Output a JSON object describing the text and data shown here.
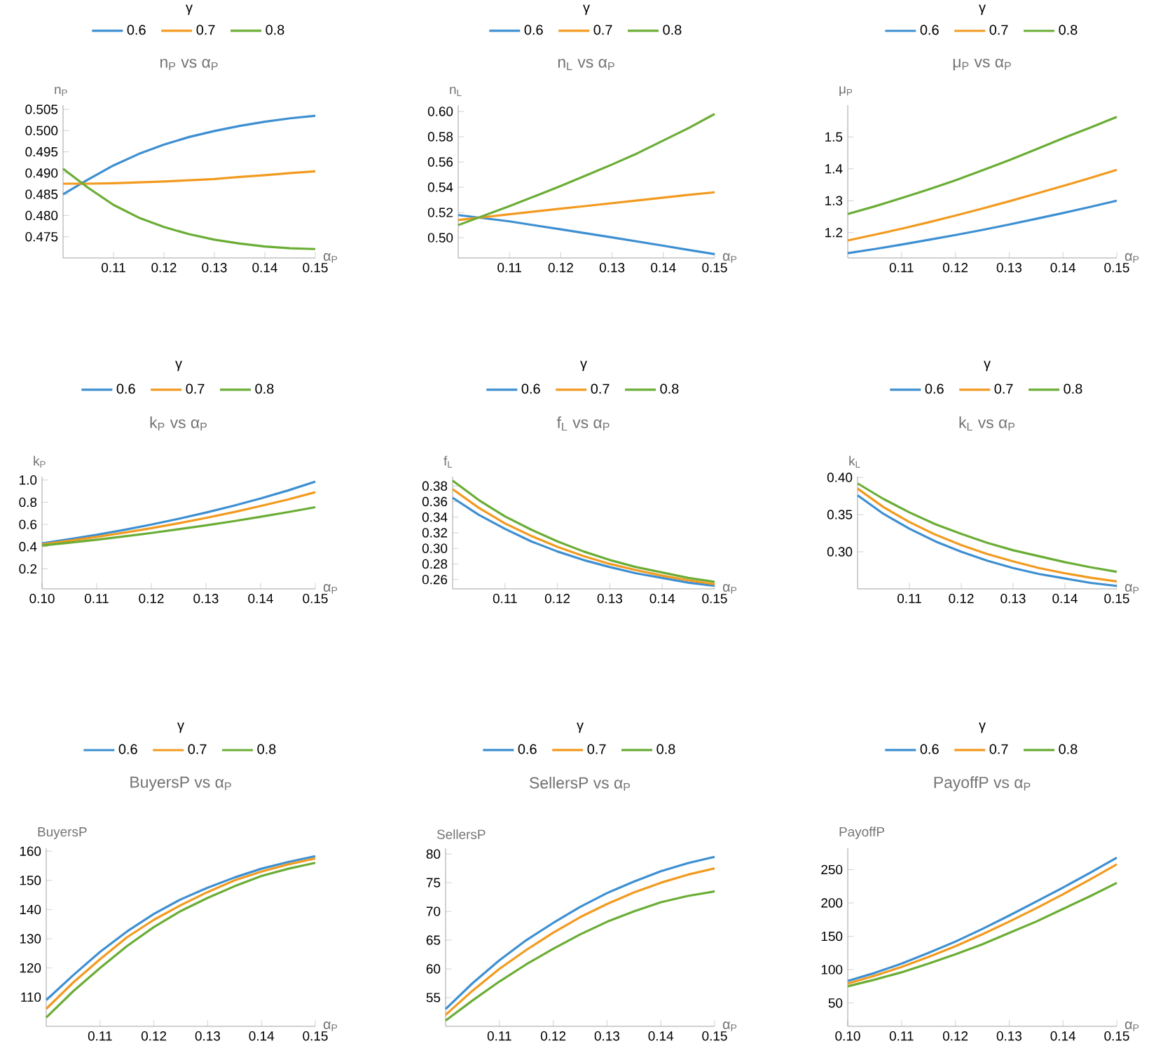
{
  "chart_data": [
    {
      "type": "line",
      "title": "n$_{P}$ vs α$_{P}$",
      "xlabel": "α$_{P}$",
      "ylabel": "n$_{P}$",
      "legend_title": "γ",
      "legend": "top",
      "x": [
        0.1,
        0.105,
        0.11,
        0.115,
        0.12,
        0.125,
        0.13,
        0.135,
        0.14,
        0.145,
        0.15
      ],
      "xlim": [
        0.1,
        0.15
      ],
      "xticks": [
        0.11,
        0.12,
        0.13,
        0.14,
        0.15
      ],
      "ylim": [
        0.47,
        0.506
      ],
      "yticks": [
        0.475,
        {
          "value": 0.48,
          "label": "0.480"
        },
        0.485,
        {
          "value": 0.49,
          "label": "0.490"
        },
        0.495,
        {
          "value": 0.5,
          "label": "0.500"
        },
        0.505
      ],
      "series": [
        {
          "name": "0.6",
          "color": "#3d8fd1",
          "values": [
            0.485,
            0.4885,
            0.4918,
            0.4945,
            0.4967,
            0.4985,
            0.4999,
            0.5011,
            0.5021,
            0.5029,
            0.5035
          ]
        },
        {
          "name": "0.7",
          "color": "#f29a1f",
          "values": [
            0.4875,
            0.4875,
            0.4876,
            0.4878,
            0.488,
            0.4883,
            0.4886,
            0.4891,
            0.4895,
            0.49,
            0.4904
          ]
        },
        {
          "name": "0.8",
          "color": "#6aad35",
          "values": [
            0.491,
            0.4865,
            0.4825,
            0.4795,
            0.4773,
            0.4756,
            0.4743,
            0.4734,
            0.4727,
            0.4723,
            0.4721
          ]
        }
      ]
    },
    {
      "type": "line",
      "title": "n$_{L}$ vs α$_{P}$",
      "xlabel": "α$_{P}$",
      "ylabel": "n$_{L}$",
      "legend_title": "γ",
      "legend": "top",
      "x": [
        0.1,
        0.105,
        0.11,
        0.115,
        0.12,
        0.125,
        0.13,
        0.135,
        0.14,
        0.145,
        0.15
      ],
      "xlim": [
        0.1,
        0.15
      ],
      "xticks": [
        0.11,
        0.12,
        0.13,
        0.14,
        0.15
      ],
      "ylim": [
        0.484,
        0.605
      ],
      "yticks": [
        {
          "value": 0.5,
          "label": "0.50"
        },
        0.52,
        0.54,
        0.56,
        0.58,
        {
          "value": 0.6,
          "label": "0.60"
        }
      ],
      "series": [
        {
          "name": "0.6",
          "color": "#3d8fd1",
          "values": [
            0.518,
            0.5155,
            0.513,
            0.5098,
            0.5067,
            0.5035,
            0.5003,
            0.497,
            0.4937,
            0.4903,
            0.487
          ]
        },
        {
          "name": "0.7",
          "color": "#f29a1f",
          "values": [
            0.514,
            0.5163,
            0.5186,
            0.5208,
            0.523,
            0.5252,
            0.5274,
            0.5296,
            0.5318,
            0.534,
            0.536
          ]
        },
        {
          "name": "0.8",
          "color": "#6aad35",
          "values": [
            0.51,
            0.5175,
            0.525,
            0.533,
            0.541,
            0.5495,
            0.558,
            0.567,
            0.577,
            0.587,
            0.598
          ]
        }
      ]
    },
    {
      "type": "line",
      "title": "μ$_{P}$ vs α$_{P}$",
      "xlabel": "α$_{P}$",
      "ylabel": "μ$_{P}$",
      "legend_title": "γ",
      "legend": "top",
      "x": [
        0.1,
        0.105,
        0.11,
        0.115,
        0.12,
        0.125,
        0.13,
        0.135,
        0.14,
        0.145,
        0.15
      ],
      "xlim": [
        0.1,
        0.15
      ],
      "xticks": [
        0.11,
        0.12,
        0.13,
        0.14,
        0.15
      ],
      "ylim": [
        1.12,
        1.6
      ],
      "yticks": [
        1.2,
        1.3,
        1.4,
        1.5
      ],
      "series": [
        {
          "name": "0.6",
          "color": "#3d8fd1",
          "values": [
            1.135,
            1.148,
            1.162,
            1.177,
            1.192,
            1.208,
            1.225,
            1.243,
            1.261,
            1.28,
            1.3
          ]
        },
        {
          "name": "0.7",
          "color": "#f29a1f",
          "values": [
            1.175,
            1.193,
            1.212,
            1.232,
            1.253,
            1.275,
            1.298,
            1.322,
            1.346,
            1.371,
            1.397
          ]
        },
        {
          "name": "0.8",
          "color": "#6aad35",
          "values": [
            1.258,
            1.282,
            1.308,
            1.335,
            1.364,
            1.395,
            1.427,
            1.461,
            1.496,
            1.529,
            1.563
          ]
        }
      ]
    },
    {
      "type": "line",
      "title": "k$_{P}$ vs α$_{P}$",
      "xlabel": "α$_{P}$",
      "ylabel": "k$_{P}$",
      "legend_title": "γ",
      "legend": "top",
      "x": [
        0.1,
        0.105,
        0.11,
        0.115,
        0.12,
        0.125,
        0.13,
        0.135,
        0.14,
        0.145,
        0.15
      ],
      "xlim": [
        0.1,
        0.15
      ],
      "xticks": [
        {
          "value": 0.1,
          "label": "0.10"
        },
        0.11,
        0.12,
        0.13,
        0.14,
        0.15
      ],
      "ylim": [
        0.02,
        1.03
      ],
      "yticks": [
        0.2,
        0.4,
        0.6,
        0.8,
        {
          "value": 1.0,
          "label": "1.0"
        }
      ],
      "series": [
        {
          "name": "0.6",
          "color": "#3d8fd1",
          "values": [
            0.43,
            0.467,
            0.507,
            0.551,
            0.599,
            0.651,
            0.707,
            0.768,
            0.834,
            0.906,
            0.985
          ]
        },
        {
          "name": "0.7",
          "color": "#f29a1f",
          "values": [
            0.42,
            0.453,
            0.488,
            0.526,
            0.567,
            0.611,
            0.659,
            0.71,
            0.766,
            0.825,
            0.89
          ]
        },
        {
          "name": "0.8",
          "color": "#6aad35",
          "values": [
            0.41,
            0.436,
            0.463,
            0.492,
            0.523,
            0.557,
            0.592,
            0.629,
            0.669,
            0.711,
            0.755
          ]
        }
      ]
    },
    {
      "type": "line",
      "title": "f$_{L}$ vs α$_{P}$",
      "xlabel": "α$_{P}$",
      "ylabel": "f$_{L}$",
      "legend_title": "γ",
      "legend": "top",
      "x": [
        0.1,
        0.105,
        0.11,
        0.115,
        0.12,
        0.125,
        0.13,
        0.135,
        0.14,
        0.145,
        0.15
      ],
      "xlim": [
        0.1,
        0.15
      ],
      "xticks": [
        0.11,
        0.12,
        0.13,
        0.14,
        0.15
      ],
      "ylim": [
        0.248,
        0.392
      ],
      "yticks": [
        0.26,
        0.28,
        {
          "value": 0.3,
          "label": "0.30"
        },
        0.32,
        0.34,
        0.36,
        0.38
      ],
      "series": [
        {
          "name": "0.6",
          "color": "#3d8fd1",
          "values": [
            0.365,
            0.343,
            0.325,
            0.309,
            0.296,
            0.285,
            0.276,
            0.268,
            0.262,
            0.256,
            0.252
          ]
        },
        {
          "name": "0.7",
          "color": "#f29a1f",
          "values": [
            0.376,
            0.352,
            0.332,
            0.316,
            0.302,
            0.29,
            0.28,
            0.272,
            0.265,
            0.259,
            0.254
          ]
        },
        {
          "name": "0.8",
          "color": "#6aad35",
          "values": [
            0.387,
            0.362,
            0.341,
            0.324,
            0.309,
            0.296,
            0.285,
            0.276,
            0.269,
            0.262,
            0.257
          ]
        }
      ]
    },
    {
      "type": "line",
      "title": "k$_{L}$ vs α$_{P}$",
      "xlabel": "α$_{P}$",
      "ylabel": "k$_{L}$",
      "legend_title": "γ",
      "legend": "top",
      "x": [
        0.1,
        0.105,
        0.11,
        0.115,
        0.12,
        0.125,
        0.13,
        0.135,
        0.14,
        0.145,
        0.15
      ],
      "xlim": [
        0.1,
        0.15
      ],
      "xticks": [
        0.11,
        0.12,
        0.13,
        0.14,
        0.15
      ],
      "ylim": [
        0.25,
        0.401
      ],
      "yticks": [
        {
          "value": 0.3,
          "label": "0.30"
        },
        0.35,
        {
          "value": 0.4,
          "label": "0.40"
        }
      ],
      "series": [
        {
          "name": "0.6",
          "color": "#3d8fd1",
          "values": [
            0.376,
            0.351,
            0.331,
            0.314,
            0.3,
            0.288,
            0.278,
            0.27,
            0.264,
            0.258,
            0.254
          ]
        },
        {
          "name": "0.7",
          "color": "#f29a1f",
          "values": [
            0.385,
            0.36,
            0.34,
            0.323,
            0.309,
            0.297,
            0.287,
            0.278,
            0.271,
            0.265,
            0.26
          ]
        },
        {
          "name": "0.8",
          "color": "#6aad35",
          "values": [
            0.392,
            0.371,
            0.353,
            0.337,
            0.324,
            0.312,
            0.302,
            0.294,
            0.286,
            0.279,
            0.273
          ]
        }
      ]
    },
    {
      "type": "line",
      "title": "BuyersP vs α$_{P}$",
      "xlabel": "α$_{P}$",
      "ylabel": "BuyersP",
      "legend_title": "γ",
      "legend": "top",
      "x": [
        0.1,
        0.105,
        0.11,
        0.115,
        0.12,
        0.125,
        0.13,
        0.135,
        0.14,
        0.145,
        0.15
      ],
      "xlim": [
        0.1,
        0.15
      ],
      "xticks": [
        0.11,
        0.12,
        0.13,
        0.14,
        0.15
      ],
      "ylim": [
        100,
        161
      ],
      "yticks": [
        110,
        120,
        130,
        140,
        150,
        160
      ],
      "series": [
        {
          "name": "0.6",
          "color": "#3d8fd1",
          "values": [
            109,
            117.5,
            125.5,
            132.5,
            138.5,
            143.5,
            147.5,
            151,
            154,
            156.3,
            158.3
          ]
        },
        {
          "name": "0.7",
          "color": "#f29a1f",
          "values": [
            106,
            115,
            123,
            130.5,
            136.5,
            141.5,
            146,
            150,
            153,
            155.5,
            157.5
          ]
        },
        {
          "name": "0.8",
          "color": "#6aad35",
          "values": [
            103,
            112,
            120,
            127.5,
            134,
            139.5,
            144,
            148,
            151.5,
            154,
            156
          ]
        }
      ]
    },
    {
      "type": "line",
      "title": "SellersP vs α$_{P}$",
      "xlabel": "α$_{P}$",
      "ylabel": "SellersP",
      "legend_title": "γ",
      "legend": "top",
      "x": [
        0.1,
        0.105,
        0.11,
        0.115,
        0.12,
        0.125,
        0.13,
        0.135,
        0.14,
        0.145,
        0.15
      ],
      "xlim": [
        0.1,
        0.15
      ],
      "xticks": [
        0.11,
        0.12,
        0.13,
        0.14,
        0.15
      ],
      "ylim": [
        50,
        81
      ],
      "yticks": [
        55,
        60,
        65,
        70,
        75,
        80
      ],
      "series": [
        {
          "name": "0.6",
          "color": "#3d8fd1",
          "values": [
            53,
            57.5,
            61.5,
            65,
            68,
            70.8,
            73.2,
            75.2,
            77,
            78.4,
            79.5
          ]
        },
        {
          "name": "0.7",
          "color": "#f29a1f",
          "values": [
            52,
            56.2,
            60,
            63.3,
            66.3,
            69,
            71.3,
            73.3,
            75,
            76.4,
            77.5
          ]
        },
        {
          "name": "0.8",
          "color": "#6aad35",
          "values": [
            51,
            54.5,
            57.8,
            60.8,
            63.5,
            66,
            68.2,
            70,
            71.6,
            72.7,
            73.5
          ]
        }
      ]
    },
    {
      "type": "line",
      "title": "PayoffP vs α$_{P}$",
      "xlabel": "α$_{P}$",
      "ylabel": "PayoffP",
      "legend_title": "γ",
      "legend": "top",
      "x": [
        0.1,
        0.105,
        0.11,
        0.115,
        0.12,
        0.125,
        0.13,
        0.135,
        0.14,
        0.145,
        0.15
      ],
      "xlim": [
        0.1,
        0.15
      ],
      "xticks": [
        {
          "value": 0.1,
          "label": "0.10"
        },
        0.11,
        0.12,
        0.13,
        0.14,
        0.15
      ],
      "ylim": [
        15,
        282
      ],
      "yticks": [
        50,
        100,
        150,
        200,
        250
      ],
      "series": [
        {
          "name": "0.6",
          "color": "#3d8fd1",
          "values": [
            83,
            95,
            109,
            125,
            142,
            161,
            181,
            202,
            223,
            245,
            268
          ]
        },
        {
          "name": "0.7",
          "color": "#f29a1f",
          "values": [
            79,
            91,
            104,
            119,
            135,
            153,
            172,
            192,
            213,
            235,
            258
          ]
        },
        {
          "name": "0.8",
          "color": "#6aad35",
          "values": [
            75,
            85,
            96,
            109,
            123,
            138,
            155,
            172,
            191,
            210,
            230
          ]
        }
      ]
    }
  ]
}
